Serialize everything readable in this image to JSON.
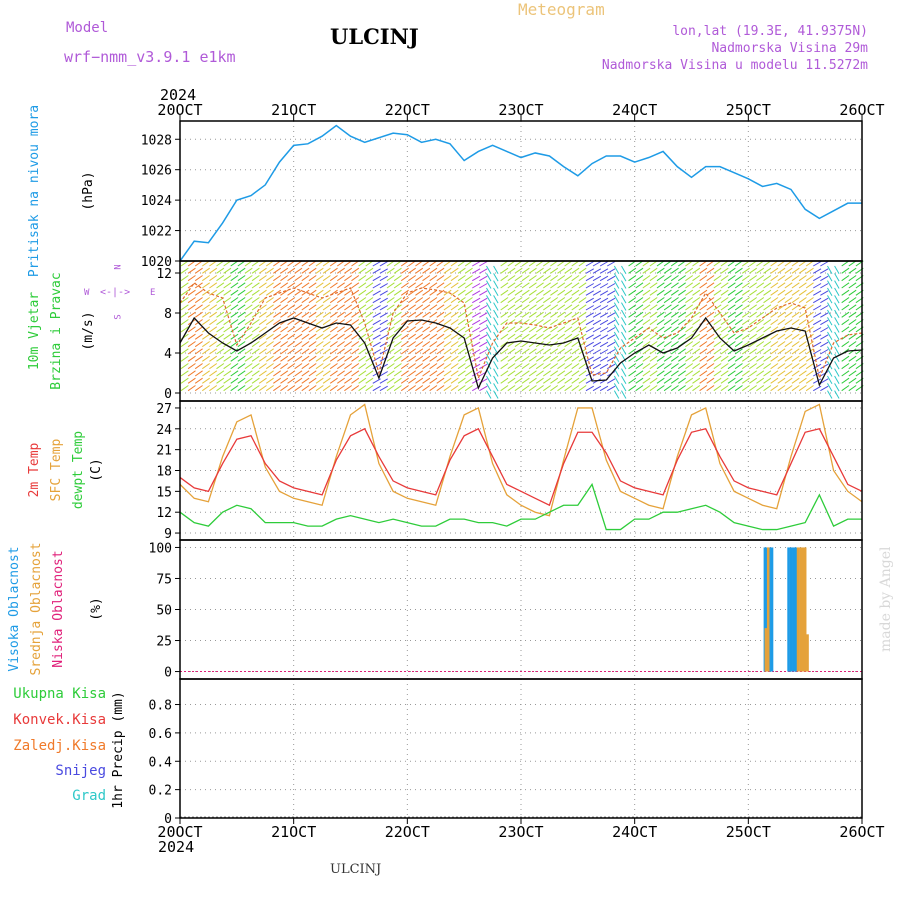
{
  "header": {
    "model_label": "Model",
    "model_name": "wrf−nmm_v3.9.1  e1km",
    "station": "ULCINJ",
    "product": "Meteogram",
    "coords": "lon,lat (19.3E, 41.9375N)",
    "elevation": "Nadmorska Visina 29m",
    "model_elevation": "Nadmorska Visina u modelu 11.5272m",
    "watermark": "made by Angel",
    "footer_station": "ULCINJ"
  },
  "time_axis": {
    "year": "2024",
    "ticks": [
      "20OCT",
      "21OCT",
      "22OCT",
      "23OCT",
      "24OCT",
      "25OCT",
      "26OCT"
    ]
  },
  "wind_compass": {
    "n": "N",
    "w": "W",
    "e": "E",
    "s": "S"
  },
  "colors": {
    "pressure": "#1e9be6",
    "wind_speed": "#111111",
    "gust": "#e06a2a",
    "temp_2m": "#e83a3a",
    "temp_sfc": "#e5a23a",
    "dewpoint": "#2ecc3a",
    "cloud_high": "#1e9be6",
    "cloud_mid": "#e5a23a",
    "cloud_low": "#e0207a",
    "precip_total": "#2ecc3a",
    "precip_conv": "#e83a3a",
    "precip_strat": "#f07a2a",
    "snow": "#4a4ae0",
    "hail": "#2ec8c8"
  },
  "chart_data": [
    {
      "type": "line",
      "panel": "pressure",
      "ylabel_lines": [
        "Pritisak na nivou mora",
        "(hPa)"
      ],
      "ylim": [
        1020,
        1029.2
      ],
      "yticks": [
        "1020",
        "1022",
        "1024",
        "1026",
        "1028"
      ],
      "grid": true,
      "x": [
        0,
        3,
        6,
        9,
        12,
        15,
        18,
        21,
        24,
        27,
        30,
        33,
        36,
        39,
        42,
        45,
        48,
        51,
        54,
        57,
        60,
        63,
        66,
        69,
        72,
        75,
        78,
        81,
        84,
        87,
        90,
        93,
        96,
        99,
        102,
        105,
        108,
        111,
        114,
        117,
        120,
        123,
        126,
        129,
        132,
        135,
        138,
        141,
        144
      ],
      "series": [
        {
          "name": "",
          "values": [
            1020,
            1021.3,
            1021.2,
            1022.5,
            1024,
            1024.3,
            1025,
            1026.5,
            1027.6,
            1027.7,
            1028.2,
            1028.9,
            1028.2,
            1027.8,
            1028.1,
            1028.4,
            1028.3,
            1027.8,
            1028,
            1027.7,
            1026.6,
            1027.2,
            1027.6,
            1027.2,
            1026.8,
            1027.1,
            1026.9,
            1026.2,
            1025.6,
            1026.4,
            1026.9,
            1026.9,
            1026.5,
            1026.8,
            1027.2,
            1026.2,
            1025.5,
            1026.2,
            1026.2,
            1025.8,
            1025.4,
            1024.9,
            1025.1,
            1024.7,
            1023.4,
            1022.8,
            1023.3,
            1023.8,
            1023.8
          ]
        }
      ]
    },
    {
      "type": "line",
      "panel": "wind",
      "ylabel_lines": [
        "10m Vjetar",
        "Brzina i Pravac",
        "(m/s)"
      ],
      "ylim": [
        -0.8,
        13.2
      ],
      "yticks": [
        "0",
        "4",
        "8",
        "12"
      ],
      "grid": true,
      "x": [
        0,
        3,
        6,
        9,
        12,
        15,
        18,
        21,
        24,
        27,
        30,
        33,
        36,
        39,
        42,
        45,
        48,
        51,
        54,
        57,
        60,
        63,
        66,
        69,
        72,
        75,
        78,
        81,
        84,
        87,
        90,
        93,
        96,
        99,
        102,
        105,
        108,
        111,
        114,
        117,
        120,
        123,
        126,
        129,
        132,
        135,
        138,
        141,
        144
      ],
      "series": [
        {
          "name": "",
          "values": [
            5,
            7.5,
            6,
            5,
            4.2,
            5,
            6,
            7,
            7.5,
            7,
            6.5,
            7,
            6.8,
            5,
            1.5,
            5.5,
            7.2,
            7.3,
            7,
            6.5,
            5.5,
            0.5,
            3.5,
            5,
            5.2,
            5,
            4.8,
            5,
            5.5,
            1.2,
            1.3,
            3,
            4,
            4.8,
            4,
            4.5,
            5.5,
            7.5,
            5.5,
            4.2,
            4.8,
            5.5,
            6.2,
            6.5,
            6.2,
            0.8,
            3.5,
            4.2,
            4.3
          ]
        },
        {
          "name": "",
          "values": [
            9,
            11,
            10,
            9.5,
            4.8,
            7,
            9.5,
            10,
            10.5,
            10,
            9.5,
            10,
            10.5,
            7,
            2,
            8,
            10,
            10.5,
            10.3,
            10,
            9,
            1.5,
            5,
            7,
            7,
            6.8,
            6.5,
            7,
            7.5,
            1.8,
            2,
            4.5,
            5.5,
            6.5,
            5.5,
            6,
            7.5,
            10,
            8,
            6,
            6.5,
            7.5,
            8.5,
            9,
            8.5,
            1.5,
            5,
            5.8,
            6
          ]
        }
      ]
    },
    {
      "type": "line",
      "panel": "temperature",
      "ylabel_lines": [
        "2m Temp",
        "SFC Temp",
        "dewpt Temp",
        "(C)"
      ],
      "ylim": [
        8,
        28
      ],
      "yticks": [
        "9",
        "12",
        "15",
        "18",
        "21",
        "24",
        "27"
      ],
      "grid": true,
      "x": [
        0,
        3,
        6,
        9,
        12,
        15,
        18,
        21,
        24,
        27,
        30,
        33,
        36,
        39,
        42,
        45,
        48,
        51,
        54,
        57,
        60,
        63,
        66,
        69,
        72,
        75,
        78,
        81,
        84,
        87,
        90,
        93,
        96,
        99,
        102,
        105,
        108,
        111,
        114,
        117,
        120,
        123,
        126,
        129,
        132,
        135,
        138,
        141,
        144
      ],
      "series": [
        {
          "name": "2m Temp",
          "values": [
            17,
            15.5,
            15,
            19,
            22.5,
            23,
            19,
            16.5,
            15.5,
            15,
            14.5,
            19.5,
            23,
            24,
            20,
            16.5,
            15.5,
            15,
            14.5,
            19.5,
            23,
            24,
            20,
            16,
            15,
            14,
            13,
            19,
            23.5,
            23.5,
            20.5,
            16.5,
            15.5,
            15,
            14.5,
            19.5,
            23.5,
            24,
            20,
            16.5,
            15.5,
            15,
            14.5,
            19,
            23.5,
            24,
            20,
            16,
            15
          ]
        },
        {
          "name": "SFC Temp",
          "values": [
            16,
            14,
            13.5,
            20,
            25,
            26,
            18.5,
            15,
            14,
            13.5,
            13,
            20,
            26,
            27.5,
            19,
            15,
            14,
            13.5,
            13,
            20,
            26,
            27,
            19,
            14.5,
            13,
            12,
            11.5,
            19.5,
            27,
            27,
            19.5,
            15,
            14,
            13,
            12.5,
            20,
            26,
            27,
            19,
            15,
            14,
            13,
            12.5,
            20,
            26.5,
            27.5,
            18,
            15,
            13.5
          ]
        },
        {
          "name": "dewpt Temp",
          "values": [
            12,
            10.5,
            10,
            12,
            13,
            12.5,
            10.5,
            10.5,
            10.5,
            10,
            10,
            11,
            11.5,
            11,
            10.5,
            11,
            10.5,
            10,
            10,
            11,
            11,
            10.5,
            10.5,
            10,
            11,
            11,
            12,
            13,
            13,
            16,
            9.5,
            9.5,
            11,
            11,
            12,
            12,
            12.5,
            13,
            12,
            10.5,
            10,
            9.5,
            9.5,
            10,
            10.5,
            14.5,
            10,
            11,
            11
          ]
        }
      ]
    },
    {
      "type": "bar",
      "panel": "cloud",
      "ylabel_lines": [
        "Visoka Oblacnost",
        "Srednja Oblacnost",
        "Niska Oblacnost",
        "(%)"
      ],
      "ylim": [
        -6,
        106
      ],
      "yticks": [
        "0",
        "25",
        "50",
        "75",
        "100"
      ],
      "grid": true,
      "series": [
        {
          "name": "Visoka Oblacnost",
          "x": [
            123.5,
            124,
            124.5,
            125,
            128.5,
            129,
            129.5,
            130
          ],
          "values": [
            100,
            100,
            100,
            100,
            100,
            100,
            100,
            100
          ]
        },
        {
          "name": "Srednja Oblacnost",
          "x": [
            123.7,
            124.2,
            130.5,
            131,
            131.5,
            132,
            132.5
          ],
          "values": [
            35,
            100,
            100,
            100,
            100,
            100,
            30
          ]
        },
        {
          "name": "Niska Oblacnost",
          "x": [],
          "values": []
        }
      ]
    },
    {
      "type": "bar",
      "panel": "precipitation",
      "ylabel_lines": [
        "1hr Precip (mm)"
      ],
      "legend": [
        "Ukupna  Kisa",
        "Konvek.Kisa",
        "Zaledj.Kisa",
        "Snijeg",
        "Grad"
      ],
      "ylim": [
        0,
        0.98
      ],
      "yticks": [
        "0",
        "0.2",
        "0.4",
        "0.6",
        "0.8"
      ],
      "grid": true,
      "series": [
        {
          "name": "Ukupna  Kisa",
          "values": []
        },
        {
          "name": "Konvek.Kisa",
          "values": []
        },
        {
          "name": "Zaledj.Kisa",
          "values": []
        },
        {
          "name": "Snijeg",
          "values": []
        },
        {
          "name": "Grad",
          "values": []
        }
      ]
    }
  ]
}
